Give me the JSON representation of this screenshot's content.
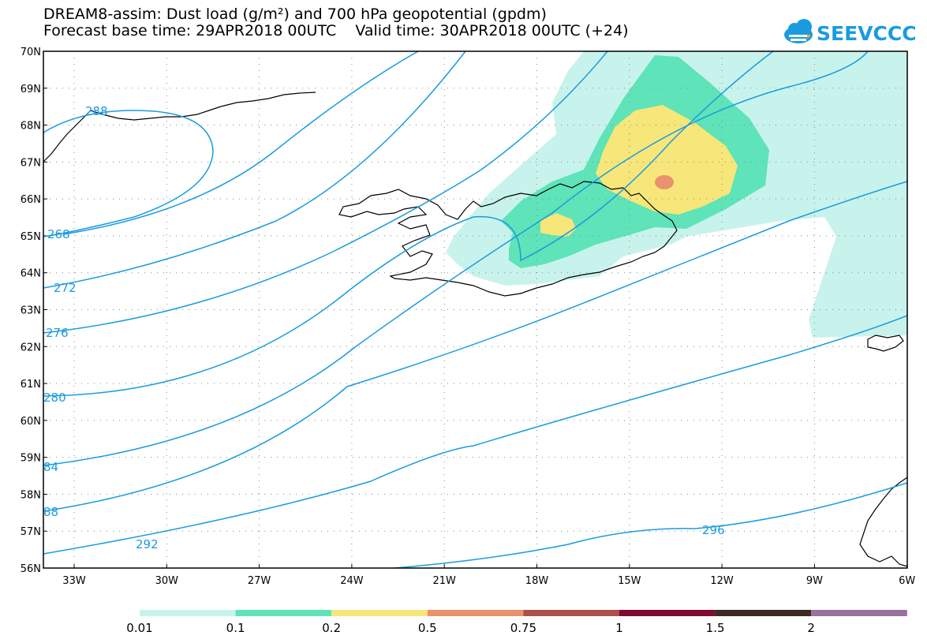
{
  "header": {
    "title_line1": "DREAM8-assim: Dust load (g/m²) and 700 hPa geopotential (gpdm)",
    "title_line2": "Forecast base time: 29APR2018 00UTC    Valid time: 30APR2018 00UTC (+24)"
  },
  "logo": {
    "text": "SEEVCCC",
    "color": "#1a9be0",
    "icon": "cloud-icon"
  },
  "map": {
    "lat_labels": [
      "70N",
      "69N",
      "68N",
      "67N",
      "66N",
      "65N",
      "64N",
      "63N",
      "62N",
      "61N",
      "60N",
      "59N",
      "58N",
      "57N",
      "56N"
    ],
    "lon_labels": [
      "33W",
      "30W",
      "27W",
      "24W",
      "21W",
      "18W",
      "15W",
      "12W",
      "9W",
      "6W"
    ],
    "isoline_color": "#1a9be0",
    "isoline_labels": [
      "288",
      "268",
      "272",
      "276",
      "280",
      "84",
      "88",
      "292",
      "296"
    ]
  },
  "colorbar": {
    "labels": [
      "0.01",
      "0.1",
      "0.2",
      "0.5",
      "0.75",
      "1",
      "1.5",
      "2"
    ],
    "colors": [
      "#c8f3ec",
      "#5fe3b8",
      "#f7e67a",
      "#e9926c",
      "#a85049",
      "#7d0b32",
      "#3b2b23",
      "#98719e"
    ]
  }
}
